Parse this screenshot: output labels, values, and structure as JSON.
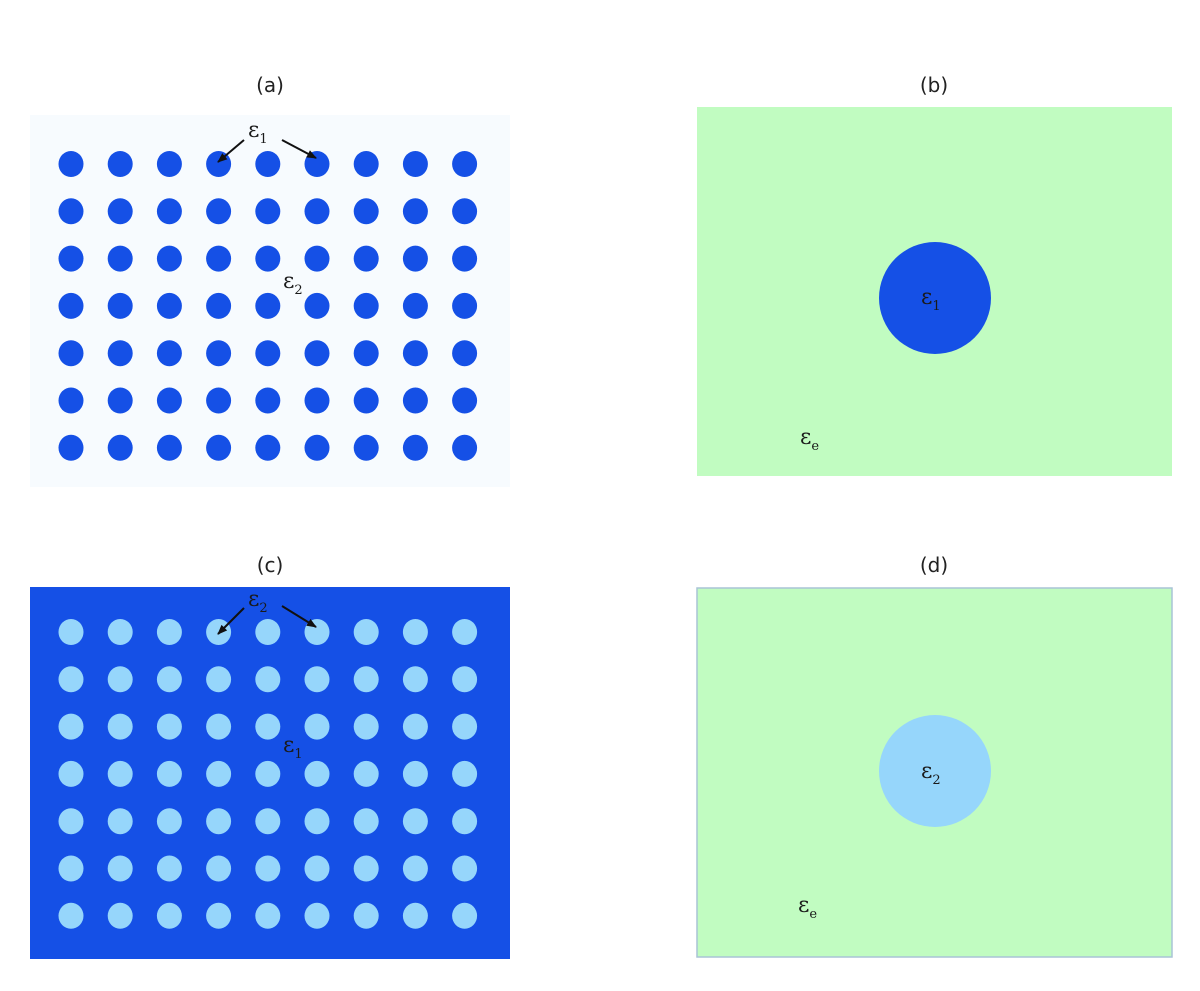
{
  "colors": {
    "background": "#ffffff",
    "dark_blue": "#1550e6",
    "light_blue": "#96d6fb",
    "pale_background": "#f7fbfe",
    "green_background": "#c1fcc1",
    "arrow": "#111111"
  },
  "panels": [
    {
      "id": "a",
      "title": "(a)",
      "grid": {
        "rows": 7,
        "cols": 9,
        "background": "pale_background",
        "inclusion": "dark_blue"
      },
      "arrow_label": {
        "symbol": "ε",
        "subscript": "1"
      },
      "matrix_label": {
        "symbol": "ε",
        "subscript": "2"
      }
    },
    {
      "id": "b",
      "title": "(b)",
      "background": "green_background",
      "inclusion": {
        "color": "dark_blue",
        "label": {
          "symbol": "ε",
          "subscript": "1"
        }
      },
      "effective_label": {
        "symbol": "ε",
        "subscript": "e"
      }
    },
    {
      "id": "c",
      "title": "(c)",
      "grid": {
        "rows": 7,
        "cols": 9,
        "background": "dark_blue",
        "inclusion": "light_blue"
      },
      "arrow_label": {
        "symbol": "ε",
        "subscript": "2"
      },
      "matrix_label": {
        "symbol": "ε",
        "subscript": "1"
      }
    },
    {
      "id": "d",
      "title": "(d)",
      "background": "green_background",
      "inclusion": {
        "color": "light_blue",
        "label": {
          "symbol": "ε",
          "subscript": "2"
        }
      },
      "effective_label": {
        "symbol": "ε",
        "subscript": "e"
      }
    }
  ]
}
